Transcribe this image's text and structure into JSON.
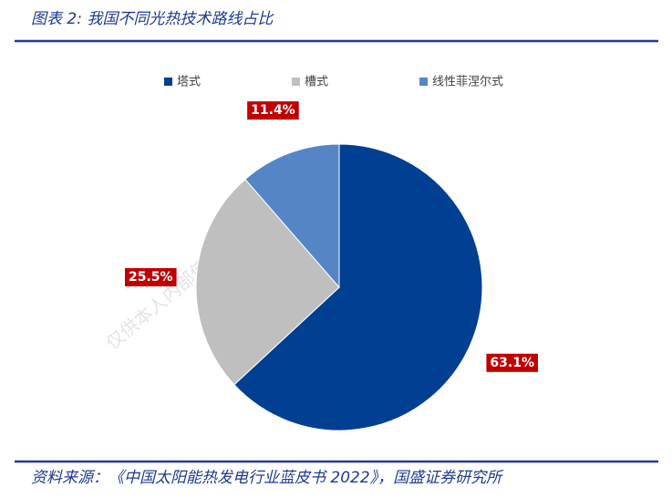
{
  "watermark": "仅供本人内部使用，不可传播与转载",
  "chart_data": {
    "type": "pie",
    "title": "图表 2:  我国不同光热技术路线占比",
    "categories": [
      "塔式",
      "槽式",
      "线性菲涅尔式"
    ],
    "values": [
      63.1,
      25.5,
      11.4
    ],
    "value_labels": [
      "63.1%",
      "25.5%",
      "11.4%"
    ],
    "colors": [
      "#003f91",
      "#bfbfbf",
      "#5585c5"
    ],
    "legend": "top",
    "source": "资料来源：《中国太阳能热发电行业蓝皮书 2022》，国盛证券研究所"
  }
}
